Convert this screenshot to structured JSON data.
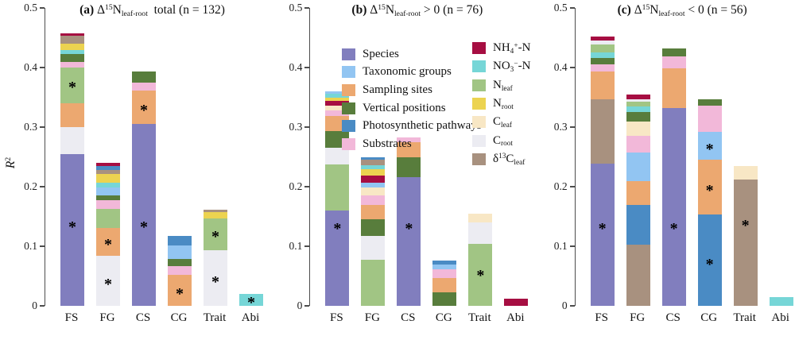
{
  "y_axis": {
    "ticks": [
      "0",
      "0.1",
      "0.2",
      "0.3",
      "0.4",
      "0.5"
    ],
    "range": [
      0,
      0.5
    ],
    "label": "R2",
    "label_parts": [
      [
        "i",
        "R"
      ],
      [
        "sup",
        "2"
      ]
    ]
  },
  "x_categories": [
    "FS",
    "FG",
    "CS",
    "CG",
    "Trait",
    "Abi"
  ],
  "colors": {
    "species": "#817EBE",
    "taxonomic": "#92C5F2",
    "sites": "#ECA870",
    "vertical": "#587D3C",
    "photo": "#4A8BC4",
    "substrates": "#F2B8D9",
    "nh4": "#A60E42",
    "no3": "#76D6D7",
    "nleaf": "#A1C584",
    "nroot": "#ECD350",
    "cleaf": "#F8E7C5",
    "croot": "#ECECF2",
    "d13c": "#A8917F"
  },
  "factors": {
    "species": "Species",
    "taxonomic": "Taxonomic groups",
    "sites": "Sampling sites",
    "vertical": "Vertical positions",
    "photo": "Photosynthetic pathways",
    "substrates": "Substrates",
    "nh4": "NH4+-N",
    "no3": "NO3--N",
    "nleaf": "Nleaf",
    "nroot": "Nroot",
    "cleaf": "Cleaf",
    "croot": "Croot",
    "d13c": "d13Cleaf"
  },
  "legend": {
    "columns": [
      {
        "name": "factors",
        "items": [
          {
            "key": "species",
            "label": "Species",
            "parts": [
              [
                "t",
                "Species"
              ]
            ]
          },
          {
            "key": "taxonomic",
            "label": "Taxonomic groups",
            "parts": [
              [
                "t",
                "Taxonomic groups"
              ]
            ]
          },
          {
            "key": "sites",
            "label": "Sampling sites",
            "parts": [
              [
                "t",
                "Sampling sites"
              ]
            ]
          },
          {
            "key": "vertical",
            "label": "Vertical positions",
            "parts": [
              [
                "t",
                "Vertical positions"
              ]
            ]
          },
          {
            "key": "photo",
            "label": "Photosynthetic pathways",
            "parts": [
              [
                "t",
                "Photosynthetic pathways"
              ]
            ]
          },
          {
            "key": "substrates",
            "label": "Substrates",
            "parts": [
              [
                "t",
                "Substrates"
              ]
            ]
          }
        ]
      },
      {
        "name": "covariates",
        "items": [
          {
            "key": "nh4",
            "label": "NH4+-N",
            "parts": [
              [
                "t",
                "NH"
              ],
              [
                "sub",
                "4"
              ],
              [
                "sup",
                "+"
              ],
              [
                "t",
                "-N"
              ]
            ]
          },
          {
            "key": "no3",
            "label": "NO3--N",
            "parts": [
              [
                "t",
                "NO"
              ],
              [
                "sub",
                "3"
              ],
              [
                "sup",
                "−"
              ],
              [
                "t",
                "-N"
              ]
            ]
          },
          {
            "key": "nleaf",
            "label": "Nleaf",
            "parts": [
              [
                "t",
                "N"
              ],
              [
                "sub",
                "leaf"
              ]
            ]
          },
          {
            "key": "nroot",
            "label": "Nroot",
            "parts": [
              [
                "t",
                "N"
              ],
              [
                "sub",
                "root"
              ]
            ]
          },
          {
            "key": "cleaf",
            "label": "Cleaf",
            "parts": [
              [
                "t",
                "C"
              ],
              [
                "sub",
                "leaf"
              ]
            ]
          },
          {
            "key": "croot",
            "label": "Croot",
            "parts": [
              [
                "t",
                "C"
              ],
              [
                "sub",
                "root"
              ]
            ]
          },
          {
            "key": "d13c",
            "label": "δ13Cleaf",
            "parts": [
              [
                "t",
                "δ"
              ],
              [
                "sup",
                "13"
              ],
              [
                "t",
                "C"
              ],
              [
                "sub",
                "leaf"
              ]
            ]
          }
        ]
      }
    ]
  },
  "chart_data": [
    {
      "panel": "a",
      "type": "stacked_bar",
      "title_plain": "(a) Δ15Nleaf-root total (n = 132)",
      "title_parts": [
        [
          "b",
          "(a)"
        ],
        [
          "t",
          " Δ"
        ],
        [
          "sup",
          "15"
        ],
        [
          "t",
          "N"
        ],
        [
          "sub",
          "leaf-root"
        ],
        [
          "t",
          " total (n = 132)"
        ]
      ],
      "n": 132,
      "ylim": [
        0,
        0.5
      ],
      "ylabel": "R2",
      "categories": [
        "FS",
        "FG",
        "CS",
        "CG",
        "Trait",
        "Abi"
      ],
      "bars": [
        {
          "category": "FS",
          "total": 0.457,
          "stars": [
            0.137,
            0.372
          ],
          "segments": [
            [
              "species",
              0.255
            ],
            [
              "croot",
              0.045
            ],
            [
              "sites",
              0.04
            ],
            [
              "nleaf",
              0.06
            ],
            [
              "substrates",
              0.01
            ],
            [
              "vertical",
              0.013
            ],
            [
              "no3",
              0.007
            ],
            [
              "nroot",
              0.01
            ],
            [
              "d13c",
              0.013
            ],
            [
              "nh4",
              0.004
            ]
          ]
        },
        {
          "category": "FG",
          "total": 0.24,
          "stars": [
            0.042,
            0.108
          ],
          "segments": [
            [
              "croot",
              0.084
            ],
            [
              "sites",
              0.047
            ],
            [
              "nleaf",
              0.032
            ],
            [
              "substrates",
              0.014
            ],
            [
              "vertical",
              0.008
            ],
            [
              "taxonomic",
              0.014
            ],
            [
              "no3",
              0.008
            ],
            [
              "nroot",
              0.014
            ],
            [
              "d13c",
              0.007
            ],
            [
              "photo",
              0.007
            ],
            [
              "nh4",
              0.005
            ]
          ]
        },
        {
          "category": "CS",
          "total": 0.393,
          "stars": [
            0.137,
            0.333
          ],
          "segments": [
            [
              "species",
              0.305
            ],
            [
              "sites",
              0.057
            ],
            [
              "substrates",
              0.013
            ],
            [
              "vertical",
              0.018
            ]
          ]
        },
        {
          "category": "CG",
          "total": 0.117,
          "stars": [
            0.026
          ],
          "segments": [
            [
              "sites",
              0.052
            ],
            [
              "substrates",
              0.015
            ],
            [
              "vertical",
              0.012
            ],
            [
              "taxonomic",
              0.022
            ],
            [
              "photo",
              0.016
            ]
          ]
        },
        {
          "category": "Trait",
          "total": 0.161,
          "stars": [
            0.046,
            0.122
          ],
          "segments": [
            [
              "croot",
              0.093
            ],
            [
              "nleaf",
              0.054
            ],
            [
              "nroot",
              0.01
            ],
            [
              "d13c",
              0.004
            ]
          ]
        },
        {
          "category": "Abi",
          "total": 0.02,
          "stars": [
            0.011
          ],
          "segments": [
            [
              "no3",
              0.02
            ]
          ]
        }
      ]
    },
    {
      "panel": "b",
      "type": "stacked_bar",
      "title_plain": "(b) Δ15Nleaf-root > 0 (n = 76)",
      "title_parts": [
        [
          "b",
          "(b)"
        ],
        [
          "t",
          " Δ"
        ],
        [
          "sup",
          "15"
        ],
        [
          "t",
          "N"
        ],
        [
          "sub",
          "leaf-root"
        ],
        [
          "t",
          " > 0 (n = 76)"
        ]
      ],
      "n": 76,
      "ylim": [
        0,
        0.5
      ],
      "ylabel": "",
      "categories": [
        "FS",
        "FG",
        "CS",
        "CG",
        "Trait",
        "Abi"
      ],
      "bars": [
        {
          "category": "FS",
          "total": 0.36,
          "stars": [
            0.135
          ],
          "segments": [
            [
              "species",
              0.16
            ],
            [
              "nleaf",
              0.077
            ],
            [
              "croot",
              0.028
            ],
            [
              "vertical",
              0.028
            ],
            [
              "sites",
              0.026
            ],
            [
              "substrates",
              0.009
            ],
            [
              "cleaf",
              0.008
            ],
            [
              "nh4",
              0.008
            ],
            [
              "nroot",
              0.005
            ],
            [
              "no3",
              0.007
            ],
            [
              "taxonomic",
              0.004
            ]
          ]
        },
        {
          "category": "FG",
          "total": 0.249,
          "stars": [],
          "segments": [
            [
              "nleaf",
              0.078
            ],
            [
              "croot",
              0.039
            ],
            [
              "vertical",
              0.028
            ],
            [
              "sites",
              0.024
            ],
            [
              "substrates",
              0.016
            ],
            [
              "cleaf",
              0.014
            ],
            [
              "taxonomic",
              0.008
            ],
            [
              "nh4",
              0.012
            ],
            [
              "nroot",
              0.01
            ],
            [
              "no3",
              0.007
            ],
            [
              "d13c",
              0.009
            ],
            [
              "photo",
              0.004
            ]
          ]
        },
        {
          "category": "CS",
          "total": 0.283,
          "stars": [
            0.135
          ],
          "segments": [
            [
              "species",
              0.216
            ],
            [
              "vertical",
              0.033
            ],
            [
              "sites",
              0.026
            ],
            [
              "substrates",
              0.008
            ]
          ]
        },
        {
          "category": "CG",
          "total": 0.076,
          "stars": [],
          "segments": [
            [
              "vertical",
              0.023
            ],
            [
              "sites",
              0.024
            ],
            [
              "substrates",
              0.014
            ],
            [
              "taxonomic",
              0.009
            ],
            [
              "photo",
              0.006
            ]
          ]
        },
        {
          "category": "Trait",
          "total": 0.155,
          "stars": [
            0.056
          ],
          "segments": [
            [
              "nleaf",
              0.104
            ],
            [
              "croot",
              0.036
            ],
            [
              "cleaf",
              0.015
            ]
          ]
        },
        {
          "category": "Abi",
          "total": 0.012,
          "stars": [],
          "segments": [
            [
              "nh4",
              0.012
            ]
          ]
        }
      ]
    },
    {
      "panel": "c",
      "type": "stacked_bar",
      "title_plain": "(c) Δ15Nleaf-root < 0 (n = 56)",
      "title_parts": [
        [
          "b",
          "(c)"
        ],
        [
          "t",
          " Δ"
        ],
        [
          "sup",
          "15"
        ],
        [
          "t",
          "N"
        ],
        [
          "sub",
          "leaf-root"
        ],
        [
          "t",
          " < 0 (n = 56)"
        ]
      ],
      "n": 56,
      "ylim": [
        0,
        0.5
      ],
      "ylabel": "",
      "categories": [
        "FS",
        "FG",
        "CS",
        "CG",
        "Trait",
        "Abi"
      ],
      "bars": [
        {
          "category": "FS",
          "total": 0.452,
          "stars": [
            0.135
          ],
          "segments": [
            [
              "species",
              0.239
            ],
            [
              "d13c",
              0.108
            ],
            [
              "sites",
              0.046
            ],
            [
              "substrates",
              0.012
            ],
            [
              "vertical",
              0.011
            ],
            [
              "no3",
              0.009
            ],
            [
              "nleaf",
              0.014
            ],
            [
              "croot",
              0.006
            ],
            [
              "nh4",
              0.007
            ]
          ]
        },
        {
          "category": "FG",
          "total": 0.355,
          "stars": [],
          "segments": [
            [
              "d13c",
              0.103
            ],
            [
              "photo",
              0.066
            ],
            [
              "sites",
              0.04
            ],
            [
              "taxonomic",
              0.049
            ],
            [
              "substrates",
              0.027
            ],
            [
              "cleaf",
              0.024
            ],
            [
              "vertical",
              0.016
            ],
            [
              "no3",
              0.01
            ],
            [
              "nleaf",
              0.008
            ],
            [
              "croot",
              0.004
            ],
            [
              "nh4",
              0.008
            ]
          ]
        },
        {
          "category": "CS",
          "total": 0.432,
          "stars": [
            0.135
          ],
          "segments": [
            [
              "species",
              0.332
            ],
            [
              "sites",
              0.067
            ],
            [
              "substrates",
              0.02
            ],
            [
              "vertical",
              0.013
            ]
          ]
        },
        {
          "category": "CG",
          "total": 0.347,
          "stars": [
            0.075,
            0.199,
            0.268
          ],
          "segments": [
            [
              "photo",
              0.153
            ],
            [
              "sites",
              0.092
            ],
            [
              "taxonomic",
              0.047
            ],
            [
              "substrates",
              0.044
            ],
            [
              "vertical",
              0.011
            ]
          ]
        },
        {
          "category": "Trait",
          "total": 0.235,
          "stars": [
            0.14
          ],
          "segments": [
            [
              "d13c",
              0.212
            ],
            [
              "cleaf",
              0.023
            ]
          ]
        },
        {
          "category": "Abi",
          "total": 0.015,
          "stars": [],
          "segments": [
            [
              "no3",
              0.015
            ]
          ]
        }
      ]
    }
  ]
}
